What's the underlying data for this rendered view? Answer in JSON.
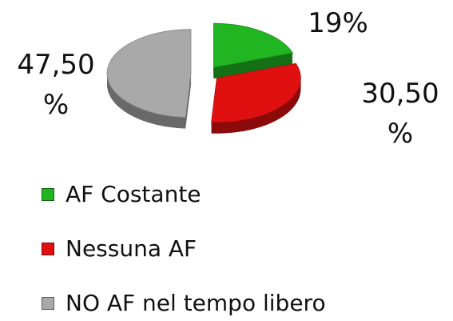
{
  "chart_data": {
    "type": "pie",
    "categories": [
      "AF Costante",
      "Nessuna AF",
      "NO AF nel tempo libero"
    ],
    "values": [
      19,
      30.5,
      47.5
    ],
    "value_labels": [
      "19%",
      "30,50 %",
      "47,50 %"
    ],
    "colors": [
      "#22b522",
      "#e01010",
      "#a9a9a9"
    ],
    "legend": "bottom"
  }
}
